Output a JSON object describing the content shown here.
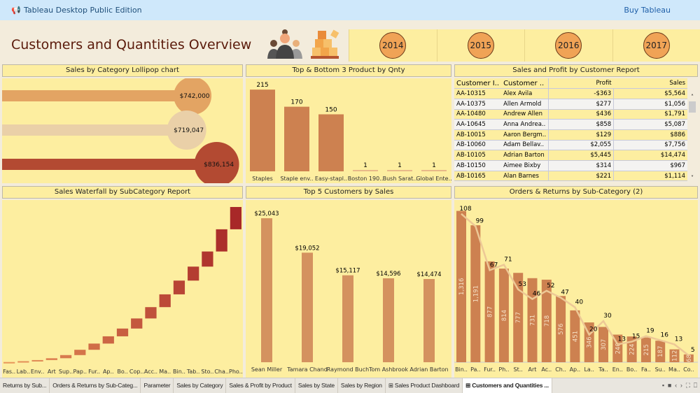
{
  "app": {
    "title": "Tableau Desktop Public Edition",
    "buy_label": "Buy Tableau"
  },
  "dashboard": {
    "title": "Customers and Quantities Overview",
    "years": [
      "2014",
      "2015",
      "2016",
      "2017"
    ]
  },
  "lollipop": {
    "title": "Sales by Category Lollipop chart",
    "type": "lollipop",
    "items": [
      {
        "label": "$742,000",
        "value": 742000,
        "color": "#e3a463"
      },
      {
        "label": "$719,047",
        "value": 719047,
        "color": "#ead0a8"
      },
      {
        "label": "$836,154",
        "value": 836154,
        "color": "#b34a32"
      }
    ]
  },
  "topbottom": {
    "title": "Top & Bottom 3 Product by Qnty",
    "type": "bar",
    "categories": [
      "Staples",
      "Staple env..",
      "Easy-stapl..",
      "Boston 190..",
      "Bush Sarat..",
      "Global Ente.."
    ],
    "values": [
      215,
      170,
      150,
      1,
      1,
      1
    ],
    "labels": [
      "215",
      "170",
      "150",
      "1",
      "1",
      "1"
    ]
  },
  "customer_report": {
    "title": "Sales and Profit by Customer Report",
    "columns": [
      "Customer I..",
      "Customer ..",
      "Profit",
      "Sales"
    ],
    "rows": [
      [
        "AA-10315",
        "Alex Avila",
        "-$363",
        "$5,564"
      ],
      [
        "AA-10375",
        "Allen Armold",
        "$277",
        "$1,056"
      ],
      [
        "AA-10480",
        "Andrew Allen",
        "$436",
        "$1,791"
      ],
      [
        "AA-10645",
        "Anna Andrea..",
        "$858",
        "$5,087"
      ],
      [
        "AB-10015",
        "Aaron Bergm..",
        "$129",
        "$886"
      ],
      [
        "AB-10060",
        "Adam Bellav..",
        "$2,055",
        "$7,756"
      ],
      [
        "AB-10105",
        "Adrian Barton",
        "$5,445",
        "$14,474"
      ],
      [
        "AB-10150",
        "Aimee Bixby",
        "$314",
        "$967"
      ],
      [
        "AB-10165",
        "Alan Barnes",
        "$221",
        "$1,114"
      ]
    ]
  },
  "waterfall": {
    "title": "Sales Waterfall by SubCategory Report",
    "type": "waterfall",
    "categories": [
      "Fas..",
      "Lab..",
      "Env..",
      "Art",
      "Sup..",
      "Pap..",
      "Fur..",
      "Ap..",
      "Bo..",
      "Cop..",
      "Acc..",
      "Ma..",
      "Bin..",
      "Tab..",
      "Sto..",
      "Cha..",
      "Pho.."
    ],
    "values": [
      3024,
      12486,
      16476,
      27119,
      46674,
      78479,
      91705,
      107532,
      114880,
      149528,
      167380,
      189239,
      203413,
      206966,
      223844,
      328449,
      330007
    ]
  },
  "top5": {
    "title": "Top 5 Customers by Sales",
    "type": "bar",
    "categories": [
      "Sean Miller",
      "Tamara Chand",
      "Raymond Buch",
      "Tom Ashbrook",
      "Adrian Barton"
    ],
    "values": [
      25043,
      19052,
      15117,
      14596,
      14474
    ],
    "labels": [
      "$25,043",
      "$19,052",
      "$15,117",
      "$14,596",
      "$14,474"
    ]
  },
  "orders": {
    "title": "Orders & Returns by Sub-Category (2)",
    "type": "bar+line",
    "categories": [
      "Bin..",
      "Pa..",
      "Fur..",
      "Ph..",
      "St..",
      "Art",
      "Ac..",
      "Ch..",
      "Ap..",
      "La..",
      "Ta..",
      "En..",
      "Bo..",
      "Fa..",
      "Su..",
      "Ma..",
      "Co.."
    ],
    "orders": [
      1316,
      1191,
      877,
      814,
      777,
      731,
      718,
      576,
      451,
      346,
      307,
      240,
      224,
      215,
      187,
      112,
      68
    ],
    "order_labels": [
      "1,316",
      "1,191",
      "877",
      "814",
      "777",
      "731",
      "718",
      "576",
      "451",
      "346",
      "307",
      "240",
      "224",
      "215",
      "187",
      "112",
      "68"
    ],
    "returns": [
      108,
      99,
      67,
      71,
      53,
      46,
      52,
      47,
      40,
      20,
      30,
      13,
      15,
      19,
      16,
      13,
      5
    ]
  },
  "tabs": [
    "Returns by Sub...",
    "Orders & Returns by Sub-Categ...",
    "Parameter",
    "Sales by Category",
    "Sales & Profit by Product",
    "Sales by State",
    "Sales by Region",
    "⊞ Sales Product Dashboard",
    "⊞ Customers and Quantities ..."
  ],
  "tab_controls": [
    "▪",
    "■",
    "‹",
    "›",
    "⛶",
    "⎕"
  ]
}
